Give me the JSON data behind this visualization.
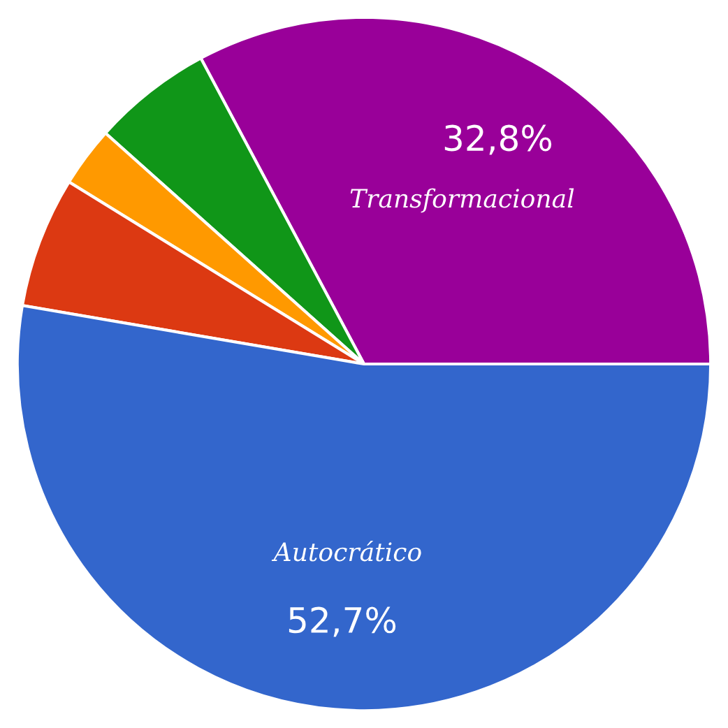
{
  "chart_data": {
    "type": "pie",
    "categories": [
      "Transformacional",
      null,
      null,
      null,
      "Autocrático"
    ],
    "values": [
      32.8,
      5.6,
      2.8,
      6.1,
      52.7
    ],
    "colors": [
      "#990099",
      "#109618",
      "#ff9900",
      "#dc3912",
      "#3366cc"
    ],
    "value_labels": [
      "32,8%",
      null,
      null,
      null,
      "52,7%"
    ]
  }
}
